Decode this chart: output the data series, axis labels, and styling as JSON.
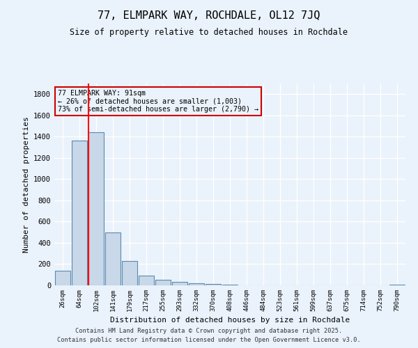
{
  "title": "77, ELMPARK WAY, ROCHDALE, OL12 7JQ",
  "subtitle": "Size of property relative to detached houses in Rochdale",
  "xlabel": "Distribution of detached houses by size in Rochdale",
  "ylabel": "Number of detached properties",
  "bar_color": "#c8d8e8",
  "bar_edge_color": "#5a8ab0",
  "background_color": "#eaf2fb",
  "grid_color": "#ffffff",
  "categories": [
    "26sqm",
    "64sqm",
    "102sqm",
    "141sqm",
    "179sqm",
    "217sqm",
    "255sqm",
    "293sqm",
    "332sqm",
    "370sqm",
    "408sqm",
    "446sqm",
    "484sqm",
    "523sqm",
    "561sqm",
    "599sqm",
    "637sqm",
    "675sqm",
    "714sqm",
    "752sqm",
    "790sqm"
  ],
  "values": [
    140,
    1360,
    1440,
    500,
    230,
    90,
    55,
    30,
    20,
    10,
    5,
    3,
    2,
    1,
    1,
    1,
    1,
    0,
    0,
    0,
    5
  ],
  "red_line_index": 2,
  "annotation_text": "77 ELMPARK WAY: 91sqm\n← 26% of detached houses are smaller (1,003)\n73% of semi-detached houses are larger (2,790) →",
  "annotation_box_color": "#cc0000",
  "ylim": [
    0,
    1900
  ],
  "yticks": [
    0,
    200,
    400,
    600,
    800,
    1000,
    1200,
    1400,
    1600,
    1800
  ],
  "footer_line1": "Contains HM Land Registry data © Crown copyright and database right 2025.",
  "footer_line2": "Contains public sector information licensed under the Open Government Licence v3.0."
}
